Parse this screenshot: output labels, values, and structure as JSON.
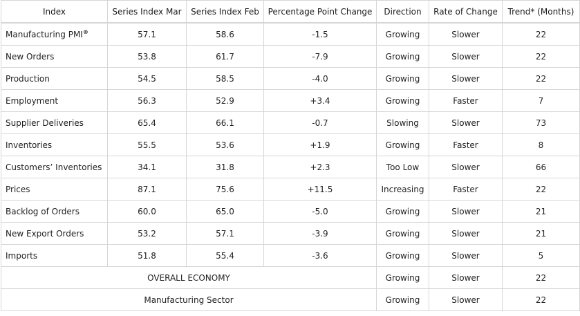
{
  "headers": [
    "Index",
    "Series Index Mar",
    "Series Index Feb",
    "Percentage Point Change",
    "Direction",
    "Rate of Change",
    "Trend* (Months)"
  ],
  "rows": [
    {
      "name": "Manufacturing PMI",
      "sup": "®",
      "mar": "57.1",
      "feb": "58.6",
      "change": "-1.5",
      "direction": "Growing",
      "rate": "Slower",
      "trend": "22"
    },
    {
      "name": "New Orders",
      "mar": "53.8",
      "feb": "61.7",
      "change": "-7.9",
      "direction": "Growing",
      "rate": "Slower",
      "trend": "22"
    },
    {
      "name": "Production",
      "mar": "54.5",
      "feb": "58.5",
      "change": "-4.0",
      "direction": "Growing",
      "rate": "Slower",
      "trend": "22"
    },
    {
      "name": "Employment",
      "mar": "56.3",
      "feb": "52.9",
      "change": "+3.4",
      "direction": "Growing",
      "rate": "Faster",
      "trend": "7"
    },
    {
      "name": "Supplier Deliveries",
      "mar": "65.4",
      "feb": "66.1",
      "change": "-0.7",
      "direction": "Slowing",
      "rate": "Slower",
      "trend": "73"
    },
    {
      "name": "Inventories",
      "mar": "55.5",
      "feb": "53.6",
      "change": "+1.9",
      "direction": "Growing",
      "rate": "Faster",
      "trend": "8"
    },
    {
      "name": "Customers’ Inventories",
      "mar": "34.1",
      "feb": "31.8",
      "change": "+2.3",
      "direction": "Too Low",
      "rate": "Slower",
      "trend": "66"
    },
    {
      "name": "Prices",
      "mar": "87.1",
      "feb": "75.6",
      "change": "+11.5",
      "direction": "Increasing",
      "rate": "Faster",
      "trend": "22"
    },
    {
      "name": "Backlog of Orders",
      "mar": "60.0",
      "feb": "65.0",
      "change": "-5.0",
      "direction": "Growing",
      "rate": "Slower",
      "trend": "21"
    },
    {
      "name": "New Export Orders",
      "mar": "53.2",
      "feb": "57.1",
      "change": "-3.9",
      "direction": "Growing",
      "rate": "Slower",
      "trend": "21"
    },
    {
      "name": "Imports",
      "mar": "51.8",
      "feb": "55.4",
      "change": "-3.6",
      "direction": "Growing",
      "rate": "Slower",
      "trend": "5"
    }
  ],
  "summary": [
    {
      "label": "OVERALL ECONOMY",
      "direction": "Growing",
      "rate": "Slower",
      "trend": "22"
    },
    {
      "label": "Manufacturing Sector",
      "direction": "Growing",
      "rate": "Slower",
      "trend": "22"
    }
  ]
}
